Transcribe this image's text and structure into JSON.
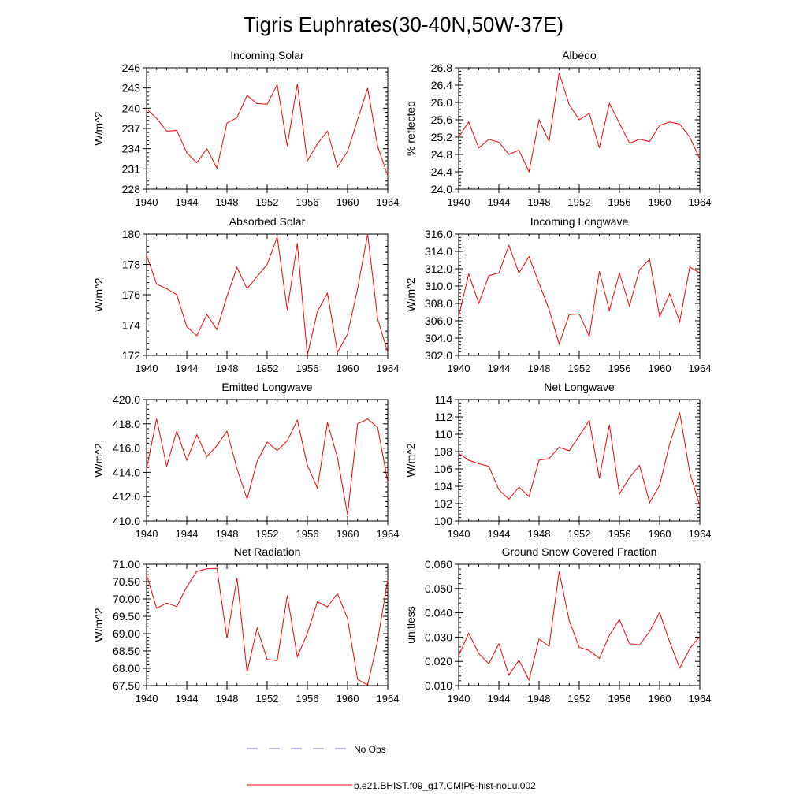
{
  "figure": {
    "title": "Tigris Euphrates(30-40N,50W-37E)",
    "legend": [
      {
        "label": "No Obs",
        "color": "#6b6bd1",
        "style": "dashed"
      },
      {
        "label": "b.e21.BHIST.f09_g17.CMIP6-hist-noLu.002",
        "color": "#ff0000",
        "style": "solid"
      }
    ]
  },
  "chart_data": [
    {
      "type": "line",
      "title": "Incoming Solar",
      "ylabel": "W/m^2",
      "xlim": [
        1940,
        1964
      ],
      "xticks": [
        1940,
        1944,
        1948,
        1952,
        1956,
        1960,
        1964
      ],
      "xtick_labels": [
        "1940",
        "1944",
        "1948",
        "1952",
        "1956",
        "1960",
        "1964"
      ],
      "ylim": [
        228,
        246
      ],
      "yticks": [
        228,
        231,
        234,
        237,
        240,
        243,
        246
      ],
      "ytick_labels": [
        "228",
        "231",
        "234",
        "237",
        "240",
        "243",
        "246"
      ],
      "series": [
        {
          "color": "#ff0000",
          "x": [
            1940,
            1941,
            1942,
            1943,
            1944,
            1945,
            1946,
            1947,
            1948,
            1949,
            1950,
            1951,
            1952,
            1953,
            1954,
            1955,
            1956,
            1957,
            1958,
            1959,
            1960,
            1961,
            1962,
            1963,
            1964
          ],
          "values": [
            239.9,
            238.5,
            236.6,
            236.7,
            233.4,
            231.9,
            234.0,
            231.1,
            237.8,
            238.6,
            241.9,
            240.7,
            240.6,
            243.5,
            234.4,
            243.6,
            232.2,
            234.7,
            236.6,
            231.3,
            233.6,
            238.3,
            243.0,
            234.3,
            230.0
          ]
        }
      ]
    },
    {
      "type": "line",
      "title": "Albedo",
      "ylabel": "% reflected",
      "xlim": [
        1940,
        1964
      ],
      "xticks": [
        1940,
        1944,
        1948,
        1952,
        1956,
        1960,
        1964
      ],
      "xtick_labels": [
        "1940",
        "1944",
        "1948",
        "1952",
        "1956",
        "1960",
        "1964"
      ],
      "ylim": [
        24.0,
        26.8
      ],
      "yticks": [
        24.0,
        24.4,
        24.8,
        25.2,
        25.6,
        26.0,
        26.4,
        26.8
      ],
      "ytick_labels": [
        "24.0",
        "24.4",
        "24.8",
        "25.2",
        "25.6",
        "26.0",
        "26.4",
        "26.8"
      ],
      "series": [
        {
          "color": "#ff0000",
          "x": [
            1940,
            1941,
            1942,
            1943,
            1944,
            1945,
            1946,
            1947,
            1948,
            1949,
            1950,
            1951,
            1952,
            1953,
            1954,
            1955,
            1956,
            1957,
            1958,
            1959,
            1960,
            1961,
            1962,
            1963,
            1964
          ],
          "values": [
            25.2,
            25.55,
            24.95,
            25.15,
            25.08,
            24.8,
            24.9,
            24.4,
            25.6,
            25.1,
            26.68,
            25.95,
            25.6,
            25.75,
            24.95,
            25.98,
            25.52,
            25.06,
            25.15,
            25.1,
            25.47,
            25.55,
            25.5,
            25.2,
            24.7
          ]
        }
      ]
    },
    {
      "type": "line",
      "title": "Absorbed Solar",
      "ylabel": "W/m^2",
      "xlim": [
        1940,
        1964
      ],
      "xticks": [
        1940,
        1944,
        1948,
        1952,
        1956,
        1960,
        1964
      ],
      "xtick_labels": [
        "1940",
        "1944",
        "1948",
        "1952",
        "1956",
        "1960",
        "1964"
      ],
      "ylim": [
        172,
        180
      ],
      "yticks": [
        172,
        174,
        176,
        178,
        180
      ],
      "ytick_labels": [
        "172",
        "174",
        "176",
        "178",
        "180"
      ],
      "series": [
        {
          "color": "#ff0000",
          "x": [
            1940,
            1941,
            1942,
            1943,
            1944,
            1945,
            1946,
            1947,
            1948,
            1949,
            1950,
            1951,
            1952,
            1953,
            1954,
            1955,
            1956,
            1957,
            1958,
            1959,
            1960,
            1961,
            1962,
            1963,
            1964
          ],
          "values": [
            178.6,
            176.7,
            176.4,
            176.0,
            173.9,
            173.3,
            174.7,
            173.7,
            175.9,
            177.8,
            176.4,
            177.2,
            178.0,
            179.8,
            175.0,
            179.4,
            172.0,
            174.9,
            176.1,
            172.2,
            173.4,
            176.4,
            180.0,
            174.4,
            172.2
          ]
        }
      ]
    },
    {
      "type": "line",
      "title": "Incoming Longwave",
      "ylabel": "W/m^2",
      "xlim": [
        1940,
        1964
      ],
      "xticks": [
        1940,
        1944,
        1948,
        1952,
        1956,
        1960,
        1964
      ],
      "xtick_labels": [
        "1940",
        "1944",
        "1948",
        "1952",
        "1956",
        "1960",
        "1964"
      ],
      "ylim": [
        302.0,
        316.0
      ],
      "yticks": [
        302,
        304,
        306,
        308,
        310,
        312,
        314,
        316
      ],
      "ytick_labels": [
        "302.0",
        "304.0",
        "306.0",
        "308.0",
        "310.0",
        "312.0",
        "314.0",
        "316.0"
      ],
      "series": [
        {
          "color": "#ff0000",
          "x": [
            1940,
            1941,
            1942,
            1943,
            1944,
            1945,
            1946,
            1947,
            1948,
            1949,
            1950,
            1951,
            1952,
            1953,
            1954,
            1955,
            1956,
            1957,
            1958,
            1959,
            1960,
            1961,
            1962,
            1963,
            1964
          ],
          "values": [
            306.5,
            311.4,
            308.0,
            311.2,
            311.5,
            314.7,
            311.5,
            313.4,
            310.3,
            307.3,
            303.3,
            306.7,
            306.8,
            304.2,
            311.7,
            307.2,
            311.5,
            307.7,
            311.9,
            313.1,
            306.5,
            309.1,
            305.9,
            312.2,
            311.5
          ]
        }
      ]
    },
    {
      "type": "line",
      "title": "Emitted Longwave",
      "ylabel": "W/m^2",
      "xlim": [
        1940,
        1964
      ],
      "xticks": [
        1940,
        1944,
        1948,
        1952,
        1956,
        1960,
        1964
      ],
      "xtick_labels": [
        "1940",
        "1944",
        "1948",
        "1952",
        "1956",
        "1960",
        "1964"
      ],
      "ylim": [
        410.0,
        420.0
      ],
      "yticks": [
        410,
        412,
        414,
        416,
        418,
        420
      ],
      "ytick_labels": [
        "410.0",
        "412.0",
        "414.0",
        "416.0",
        "418.0",
        "420.0"
      ],
      "series": [
        {
          "color": "#ff0000",
          "x": [
            1940,
            1941,
            1942,
            1943,
            1944,
            1945,
            1946,
            1947,
            1948,
            1949,
            1950,
            1951,
            1952,
            1953,
            1954,
            1955,
            1956,
            1957,
            1958,
            1959,
            1960,
            1961,
            1962,
            1963,
            1964
          ],
          "values": [
            414.3,
            418.4,
            414.5,
            417.4,
            415.0,
            417.1,
            415.3,
            416.2,
            417.4,
            414.3,
            411.8,
            414.9,
            416.5,
            415.8,
            416.6,
            418.3,
            414.6,
            412.7,
            418.1,
            415.2,
            410.5,
            418.0,
            418.4,
            417.7,
            413.2
          ]
        }
      ]
    },
    {
      "type": "line",
      "title": "Net Longwave",
      "ylabel": "W/m^2",
      "xlim": [
        1940,
        1964
      ],
      "xticks": [
        1940,
        1944,
        1948,
        1952,
        1956,
        1960,
        1964
      ],
      "xtick_labels": [
        "1940",
        "1944",
        "1948",
        "1952",
        "1956",
        "1960",
        "1964"
      ],
      "ylim": [
        100,
        114
      ],
      "yticks": [
        100,
        102,
        104,
        106,
        108,
        110,
        112,
        114
      ],
      "ytick_labels": [
        "100",
        "102",
        "104",
        "106",
        "108",
        "110",
        "112",
        "114"
      ],
      "series": [
        {
          "color": "#ff0000",
          "x": [
            1940,
            1941,
            1942,
            1943,
            1944,
            1945,
            1946,
            1947,
            1948,
            1949,
            1950,
            1951,
            1952,
            1953,
            1954,
            1955,
            1956,
            1957,
            1958,
            1959,
            1960,
            1961,
            1962,
            1963,
            1964
          ],
          "values": [
            107.8,
            107.0,
            106.6,
            106.3,
            103.6,
            102.5,
            103.9,
            102.8,
            107.0,
            107.2,
            108.5,
            108.1,
            109.8,
            111.6,
            104.9,
            111.1,
            103.1,
            105.0,
            106.4,
            102.1,
            104.1,
            108.9,
            112.5,
            105.6,
            101.7
          ]
        }
      ]
    },
    {
      "type": "line",
      "title": "Net Radiation",
      "ylabel": "W/m^2",
      "xlim": [
        1940,
        1964
      ],
      "xticks": [
        1940,
        1944,
        1948,
        1952,
        1956,
        1960,
        1964
      ],
      "xtick_labels": [
        "1940",
        "1944",
        "1948",
        "1952",
        "1956",
        "1960",
        "1964"
      ],
      "ylim": [
        67.5,
        71.0
      ],
      "yticks": [
        67.5,
        68.0,
        68.5,
        69.0,
        69.5,
        70.0,
        70.5,
        71.0
      ],
      "ytick_labels": [
        "67.50",
        "68.00",
        "68.50",
        "69.00",
        "69.50",
        "70.00",
        "70.50",
        "71.00"
      ],
      "series": [
        {
          "color": "#ff0000",
          "x": [
            1940,
            1941,
            1942,
            1943,
            1944,
            1945,
            1946,
            1947,
            1948,
            1949,
            1950,
            1951,
            1952,
            1953,
            1954,
            1955,
            1956,
            1957,
            1958,
            1959,
            1960,
            1961,
            1962,
            1963,
            1964
          ],
          "values": [
            70.7,
            69.73,
            69.88,
            69.78,
            70.35,
            70.79,
            70.87,
            70.88,
            68.87,
            70.6,
            67.89,
            69.16,
            68.26,
            68.22,
            70.1,
            68.33,
            69.01,
            69.92,
            69.77,
            70.16,
            69.43,
            67.68,
            67.52,
            68.8,
            70.55
          ]
        }
      ]
    },
    {
      "type": "line",
      "title": "Ground Snow Covered Fraction",
      "ylabel": "unitless",
      "xlim": [
        1940,
        1964
      ],
      "xticks": [
        1940,
        1944,
        1948,
        1952,
        1956,
        1960,
        1964
      ],
      "xtick_labels": [
        "1940",
        "1944",
        "1948",
        "1952",
        "1956",
        "1960",
        "1964"
      ],
      "ylim": [
        0.01,
        0.06
      ],
      "yticks": [
        0.01,
        0.02,
        0.03,
        0.04,
        0.05,
        0.06
      ],
      "ytick_labels": [
        "0.010",
        "0.020",
        "0.030",
        "0.040",
        "0.050",
        "0.060"
      ],
      "series": [
        {
          "color": "#ff0000",
          "x": [
            1940,
            1941,
            1942,
            1943,
            1944,
            1945,
            1946,
            1947,
            1948,
            1949,
            1950,
            1951,
            1952,
            1953,
            1954,
            1955,
            1956,
            1957,
            1958,
            1959,
            1960,
            1961,
            1962,
            1963,
            1964
          ],
          "values": [
            0.0225,
            0.0316,
            0.0232,
            0.019,
            0.0273,
            0.0143,
            0.0205,
            0.0123,
            0.0292,
            0.0262,
            0.057,
            0.0368,
            0.0258,
            0.0245,
            0.0212,
            0.0308,
            0.0372,
            0.0273,
            0.0268,
            0.0323,
            0.0401,
            0.028,
            0.0172,
            0.0253,
            0.0303
          ]
        }
      ]
    }
  ]
}
